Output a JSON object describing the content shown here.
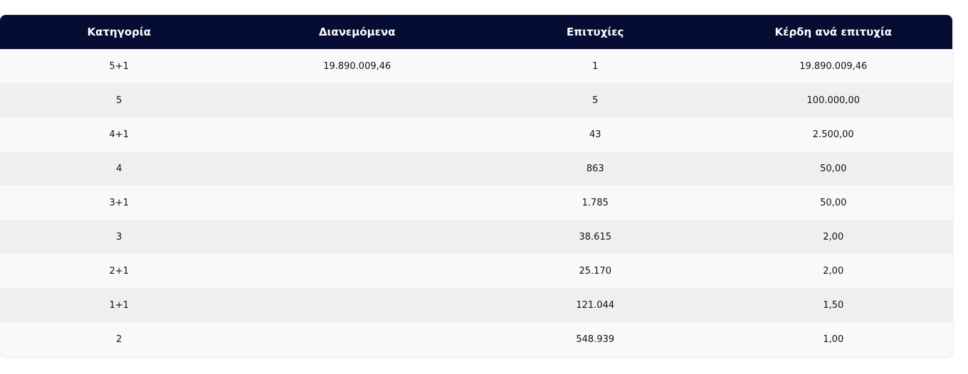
{
  "table": {
    "columns": [
      "Κατηγορία",
      "Διανεμόμενα",
      "Επιτυχίες",
      "Κέρδη ανά επιτυχία"
    ],
    "rows": [
      [
        "5+1",
        "19.890.009,46",
        "1",
        "19.890.009,46"
      ],
      [
        "5",
        null,
        "5",
        "100.000,00"
      ],
      [
        "4+1",
        null,
        "43",
        "2.500,00"
      ],
      [
        "4",
        null,
        "863",
        "50,00"
      ],
      [
        "3+1",
        null,
        "1.785",
        "50,00"
      ],
      [
        "3",
        null,
        "38.615",
        "2,00"
      ],
      [
        "2+1",
        null,
        "25.170",
        "2,00"
      ],
      [
        "1+1",
        null,
        "121.044",
        "1,50"
      ],
      [
        "2",
        null,
        "548.939",
        "1,00"
      ]
    ]
  }
}
